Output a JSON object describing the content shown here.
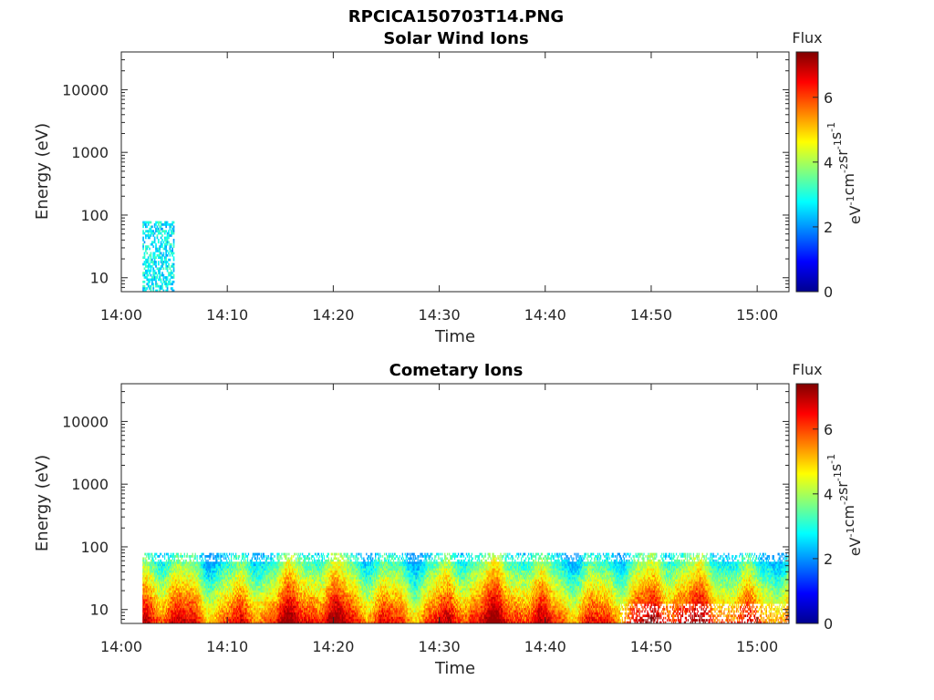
{
  "figure_title": "RPCICA150703T14.PNG",
  "colorbar_label": "Flux",
  "colorbar_unit": "eV-1cm-2sr-1s-1",
  "colorbar_ticks": [
    "0",
    "2",
    "4",
    "6"
  ],
  "colormap": "jet",
  "chart_data": [
    {
      "type": "heatmap",
      "title": "Solar Wind Ions",
      "xlabel": "Time",
      "ylabel": "Energy (eV)",
      "x_ticks": [
        "14:00",
        "14:10",
        "14:20",
        "14:30",
        "14:40",
        "14:50",
        "15:00"
      ],
      "y_ticks": [
        "10",
        "100",
        "1000",
        "10000"
      ],
      "y_scale": "log",
      "ylim": [
        6,
        40000
      ],
      "xlim_minutes": [
        0,
        63
      ],
      "zlim": [
        0,
        7.4
      ],
      "data_extent": {
        "time_range": [
          "14:02",
          "14:05"
        ],
        "energy_range_eV": [
          6,
          80
        ]
      },
      "flux_range": [
        2,
        3.4
      ]
    },
    {
      "type": "heatmap",
      "title": "Cometary Ions",
      "xlabel": "Time",
      "ylabel": "Energy (eV)",
      "x_ticks": [
        "14:00",
        "14:10",
        "14:20",
        "14:30",
        "14:40",
        "14:50",
        "15:00"
      ],
      "y_ticks": [
        "10",
        "100",
        "1000",
        "10000"
      ],
      "y_scale": "log",
      "ylim": [
        6,
        40000
      ],
      "xlim_minutes": [
        0,
        63
      ],
      "zlim": [
        0,
        7.4
      ],
      "data_extent": {
        "time_range": [
          "14:02",
          "15:03"
        ],
        "energy_range_eV": [
          6,
          80
        ]
      },
      "flux_range": [
        2,
        7.2
      ]
    }
  ]
}
